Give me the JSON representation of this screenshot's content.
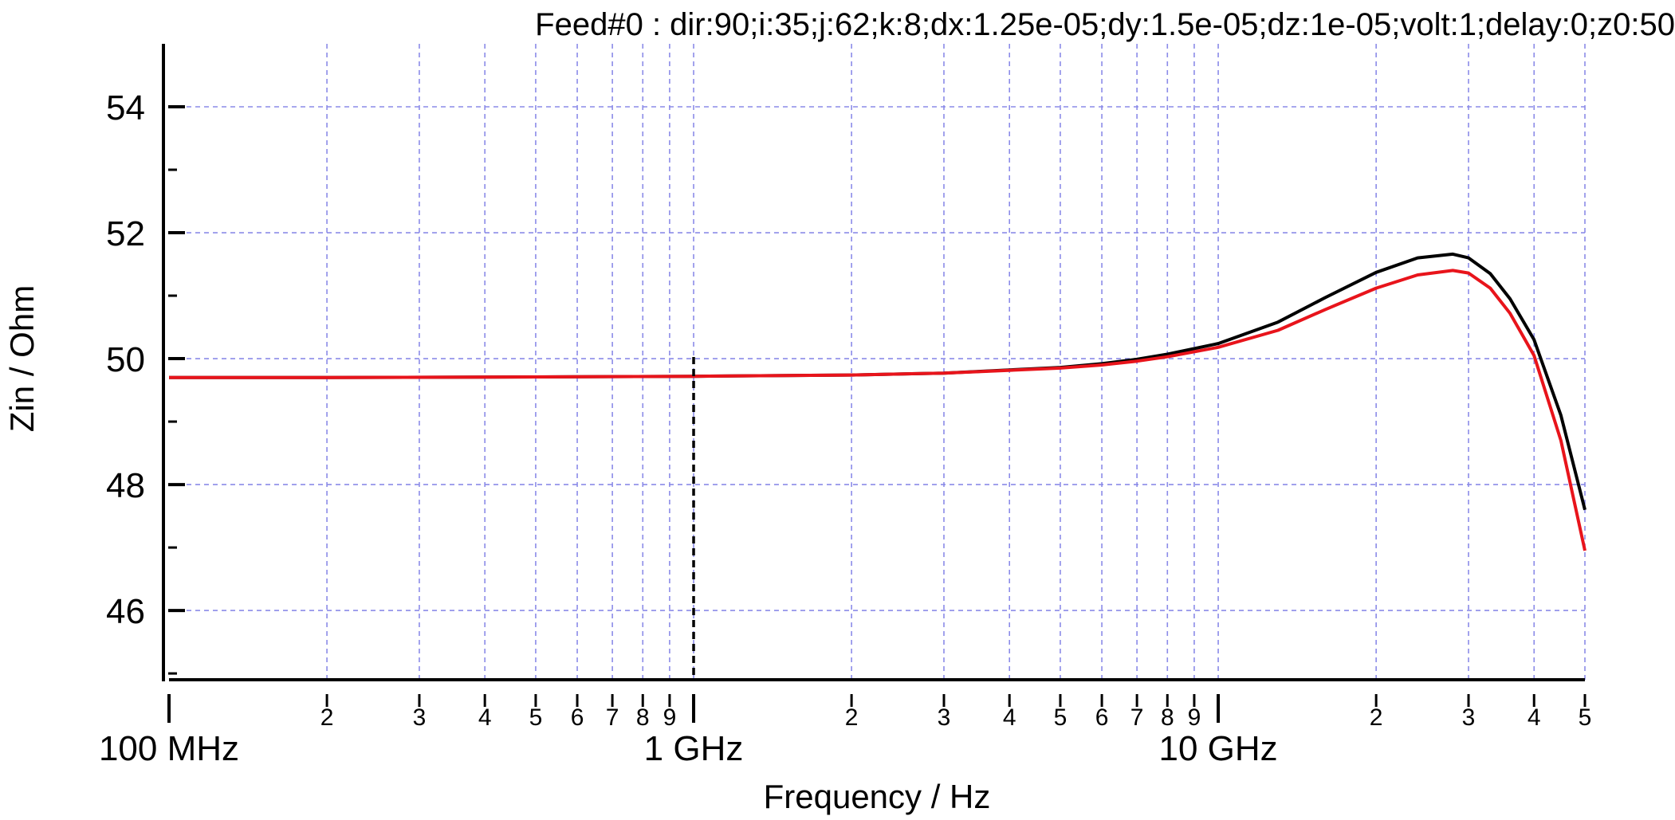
{
  "chart_data": {
    "type": "line",
    "title": "Feed#0 : dir:90;i:35;j:62;k:8;dx:1.25e-05;dy:1.5e-05;dz:1e-05;volt:1;delay:0;z0:50",
    "xlabel": "Frequency / Hz",
    "ylabel": "Zin / Ohm",
    "x_scale": "log",
    "xlim": [
      100000000,
      50000000000
    ],
    "ylim": [
      44.9,
      55
    ],
    "grid": true,
    "legend": "none",
    "y_ticks": [
      46,
      48,
      50,
      52,
      54
    ],
    "x_major_ticks": [
      {
        "value": 100000000,
        "label": "100 MHz"
      },
      {
        "value": 1000000000,
        "label": "1 GHz"
      },
      {
        "value": 10000000000,
        "label": "10 GHz"
      }
    ],
    "x_minor_ticks": [
      {
        "value": 200000000,
        "label": "2"
      },
      {
        "value": 300000000,
        "label": "3"
      },
      {
        "value": 400000000,
        "label": "4"
      },
      {
        "value": 500000000,
        "label": "5"
      },
      {
        "value": 600000000,
        "label": "6"
      },
      {
        "value": 700000000,
        "label": "7"
      },
      {
        "value": 800000000,
        "label": "8"
      },
      {
        "value": 900000000,
        "label": "9"
      },
      {
        "value": 2000000000,
        "label": "2"
      },
      {
        "value": 3000000000,
        "label": "3"
      },
      {
        "value": 4000000000,
        "label": "4"
      },
      {
        "value": 5000000000,
        "label": "5"
      },
      {
        "value": 6000000000,
        "label": "6"
      },
      {
        "value": 7000000000,
        "label": "7"
      },
      {
        "value": 8000000000,
        "label": "8"
      },
      {
        "value": 9000000000,
        "label": "9"
      },
      {
        "value": 20000000000,
        "label": "2"
      },
      {
        "value": 30000000000,
        "label": "3"
      },
      {
        "value": 40000000000,
        "label": "4"
      },
      {
        "value": 50000000000,
        "label": "5"
      }
    ],
    "marker_line": {
      "x": 1000000000,
      "style": "dashed",
      "y_top": 50.0
    },
    "series": [
      {
        "color": "#000000",
        "x": [
          100000000,
          200000000,
          500000000,
          1000000000,
          2000000000,
          3000000000,
          5000000000,
          6000000000,
          7000000000,
          8000000000,
          10000000000,
          13000000000,
          16000000000,
          20000000000,
          24000000000,
          28000000000,
          30000000000,
          33000000000,
          36000000000,
          40000000000,
          45000000000,
          50000000000
        ],
        "y": [
          49.7,
          49.7,
          49.71,
          49.72,
          49.74,
          49.77,
          49.86,
          49.92,
          49.99,
          50.07,
          50.24,
          50.58,
          50.97,
          51.37,
          51.6,
          51.66,
          51.6,
          51.35,
          50.95,
          50.3,
          49.1,
          47.6
        ]
      },
      {
        "color": "#e8141b",
        "x": [
          100000000,
          200000000,
          500000000,
          1000000000,
          2000000000,
          3000000000,
          5000000000,
          6000000000,
          7000000000,
          8000000000,
          10000000000,
          13000000000,
          16000000000,
          20000000000,
          24000000000,
          28000000000,
          30000000000,
          33000000000,
          36000000000,
          40000000000,
          45000000000,
          50000000000
        ],
        "y": [
          49.7,
          49.7,
          49.71,
          49.72,
          49.74,
          49.77,
          49.85,
          49.9,
          49.96,
          50.03,
          50.18,
          50.45,
          50.78,
          51.12,
          51.33,
          51.4,
          51.36,
          51.12,
          50.72,
          50.05,
          48.7,
          46.95
        ]
      }
    ]
  }
}
